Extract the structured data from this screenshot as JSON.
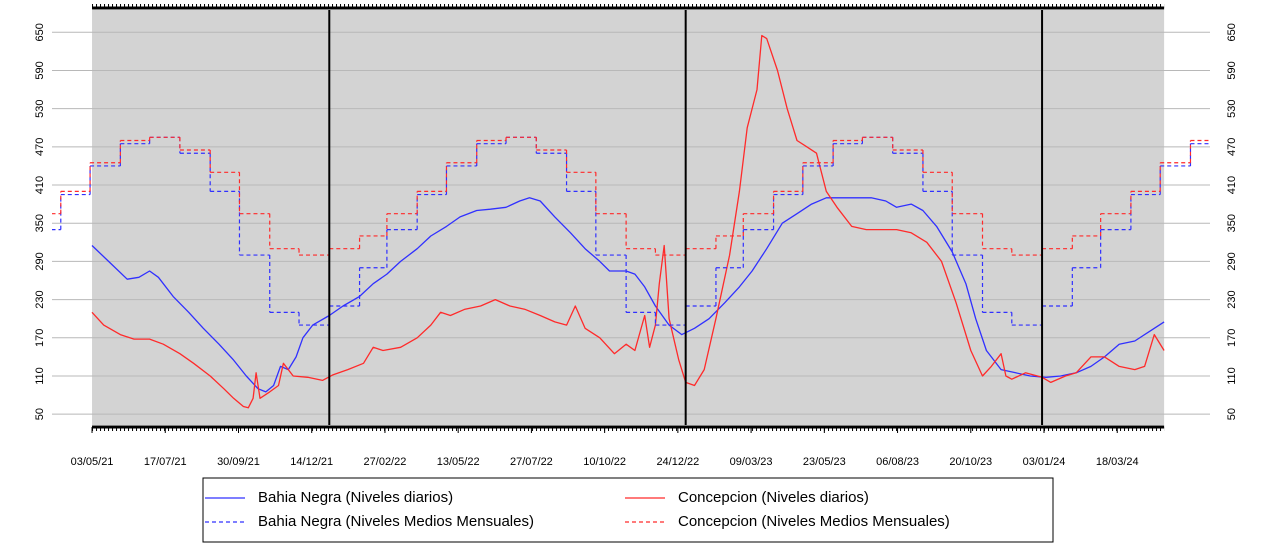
{
  "chart_data": {
    "type": "line",
    "xlim": [
      "2021-03-23",
      "2024-06-21"
    ],
    "ylim": [
      33,
      685
    ],
    "yticks": [
      50,
      110,
      170,
      230,
      290,
      350,
      410,
      470,
      530,
      590,
      650
    ],
    "xticks": [
      {
        "value": "2021-05-03",
        "label": "03/05/21"
      },
      {
        "value": "2021-07-17",
        "label": "17/07/21"
      },
      {
        "value": "2021-09-30",
        "label": "30/09/21"
      },
      {
        "value": "2021-12-14",
        "label": "14/12/21"
      },
      {
        "value": "2022-02-27",
        "label": "27/02/22"
      },
      {
        "value": "2022-05-13",
        "label": "13/05/22"
      },
      {
        "value": "2022-07-27",
        "label": "27/07/22"
      },
      {
        "value": "2022-10-10",
        "label": "10/10/22"
      },
      {
        "value": "2022-12-24",
        "label": "24/12/22"
      },
      {
        "value": "2023-03-09",
        "label": "09/03/23"
      },
      {
        "value": "2023-05-23",
        "label": "23/05/23"
      },
      {
        "value": "2023-08-06",
        "label": "06/08/23"
      },
      {
        "value": "2023-10-20",
        "label": "20/10/23"
      },
      {
        "value": "2024-01-03",
        "label": "03/01/24"
      },
      {
        "value": "2024-03-18",
        "label": "18/03/24"
      }
    ],
    "vlines": [
      "2022-01-01",
      "2023-01-01",
      "2024-01-01"
    ],
    "grid": true,
    "background": "#d3d3d3",
    "legend": "bottom",
    "series": [
      {
        "name": "Bahia Negra (Niveles diarios)",
        "color": "#3030ff",
        "dashed": false,
        "x": [
          "2021-05-03",
          "2021-05-20",
          "2021-06-08",
          "2021-06-20",
          "2021-07-01",
          "2021-07-10",
          "2021-07-25",
          "2021-08-10",
          "2021-08-25",
          "2021-09-10",
          "2021-09-25",
          "2021-10-08",
          "2021-10-20",
          "2021-10-28",
          "2021-11-05",
          "2021-11-12",
          "2021-11-20",
          "2021-11-28",
          "2021-12-05",
          "2021-12-15",
          "2022-01-01",
          "2022-01-15",
          "2022-02-01",
          "2022-02-15",
          "2022-03-01",
          "2022-03-15",
          "2022-04-01",
          "2022-04-15",
          "2022-05-01",
          "2022-05-15",
          "2022-06-01",
          "2022-06-15",
          "2022-07-01",
          "2022-07-15",
          "2022-07-25",
          "2022-08-05",
          "2022-08-20",
          "2022-09-05",
          "2022-09-20",
          "2022-10-05",
          "2022-10-15",
          "2022-11-01",
          "2022-11-10",
          "2022-11-20",
          "2022-12-01",
          "2022-12-15",
          "2022-12-28",
          "2023-01-10",
          "2023-01-25",
          "2023-02-10",
          "2023-02-25",
          "2023-03-10",
          "2023-03-25",
          "2023-04-10",
          "2023-04-25",
          "2023-05-10",
          "2023-05-25",
          "2023-06-10",
          "2023-06-25",
          "2023-07-10",
          "2023-07-25",
          "2023-08-05",
          "2023-08-20",
          "2023-09-01",
          "2023-09-15",
          "2023-10-01",
          "2023-10-15",
          "2023-10-25",
          "2023-11-05",
          "2023-11-20",
          "2023-12-05",
          "2023-12-20",
          "2024-01-05",
          "2024-01-20",
          "2024-02-05",
          "2024-02-20",
          "2024-03-05",
          "2024-03-20",
          "2024-04-05",
          "2024-04-20",
          "2024-05-05"
        ],
        "values": [
          315,
          290,
          262,
          265,
          275,
          265,
          235,
          210,
          185,
          160,
          135,
          110,
          90,
          85,
          95,
          125,
          120,
          140,
          170,
          190,
          205,
          220,
          235,
          255,
          270,
          290,
          310,
          330,
          345,
          360,
          370,
          372,
          375,
          385,
          390,
          385,
          360,
          335,
          310,
          290,
          275,
          275,
          270,
          250,
          220,
          190,
          175,
          185,
          200,
          225,
          250,
          275,
          310,
          350,
          365,
          380,
          390,
          390,
          390,
          390,
          385,
          375,
          380,
          370,
          345,
          305,
          255,
          200,
          150,
          120,
          115,
          110,
          108,
          110,
          115,
          125,
          140,
          160,
          165,
          180,
          195
        ]
      },
      {
        "name": "Concepcion (Niveles diarios)",
        "color": "#ff2a2a",
        "dashed": false,
        "x": [
          "2021-05-03",
          "2021-05-15",
          "2021-06-01",
          "2021-06-15",
          "2021-07-01",
          "2021-07-15",
          "2021-08-01",
          "2021-08-15",
          "2021-09-01",
          "2021-09-15",
          "2021-09-25",
          "2021-10-05",
          "2021-10-10",
          "2021-10-15",
          "2021-10-18",
          "2021-10-22",
          "2021-11-01",
          "2021-11-10",
          "2021-11-15",
          "2021-11-25",
          "2021-12-10",
          "2021-12-25",
          "2022-01-05",
          "2022-01-20",
          "2022-02-05",
          "2022-02-15",
          "2022-02-25",
          "2022-03-15",
          "2022-04-01",
          "2022-04-15",
          "2022-04-25",
          "2022-05-05",
          "2022-05-20",
          "2022-06-05",
          "2022-06-20",
          "2022-07-05",
          "2022-07-20",
          "2022-08-05",
          "2022-08-20",
          "2022-09-01",
          "2022-09-10",
          "2022-09-20",
          "2022-10-05",
          "2022-10-20",
          "2022-11-01",
          "2022-11-10",
          "2022-11-20",
          "2022-11-25",
          "2022-12-01",
          "2022-12-05",
          "2022-12-10",
          "2022-12-15",
          "2022-12-25",
          "2023-01-01",
          "2023-01-10",
          "2023-01-20",
          "2023-02-01",
          "2023-02-15",
          "2023-02-25",
          "2023-03-05",
          "2023-03-15",
          "2023-03-20",
          "2023-03-25",
          "2023-04-05",
          "2023-04-15",
          "2023-04-25",
          "2023-05-05",
          "2023-05-15",
          "2023-05-25",
          "2023-06-05",
          "2023-06-20",
          "2023-07-05",
          "2023-07-20",
          "2023-08-05",
          "2023-08-20",
          "2023-09-05",
          "2023-09-20",
          "2023-10-05",
          "2023-10-20",
          "2023-11-01",
          "2023-11-10",
          "2023-11-20",
          "2023-11-25",
          "2023-12-01",
          "2023-12-15",
          "2024-01-01",
          "2024-01-10",
          "2024-01-25",
          "2024-02-05",
          "2024-02-20",
          "2024-03-05",
          "2024-03-20",
          "2024-04-05",
          "2024-04-15",
          "2024-04-25",
          "2024-05-05"
        ],
        "values": [
          210,
          190,
          175,
          168,
          168,
          160,
          145,
          130,
          110,
          90,
          75,
          62,
          60,
          75,
          115,
          75,
          85,
          95,
          130,
          110,
          108,
          103,
          112,
          120,
          130,
          155,
          150,
          155,
          170,
          190,
          210,
          205,
          215,
          220,
          230,
          220,
          215,
          205,
          195,
          190,
          220,
          185,
          170,
          145,
          160,
          150,
          205,
          155,
          190,
          255,
          315,
          200,
          135,
          100,
          95,
          120,
          200,
          300,
          400,
          500,
          560,
          645,
          640,
          590,
          530,
          480,
          470,
          460,
          400,
          375,
          345,
          340,
          340,
          340,
          335,
          320,
          290,
          225,
          150,
          110,
          125,
          145,
          110,
          105,
          115,
          108,
          100,
          110,
          115,
          140,
          140,
          125,
          120,
          125,
          175,
          150
        ]
      },
      {
        "name": "Bahia Negra (Niveles Medios Mensuales)",
        "color": "#3030ff",
        "dashed": true,
        "x": [
          "2021-03-01",
          "2021-04-01",
          "2021-05-01",
          "2021-06-01",
          "2021-07-01",
          "2021-08-01",
          "2021-09-01",
          "2021-10-01",
          "2021-11-01",
          "2021-12-01",
          "2022-01-01",
          "2022-02-01",
          "2022-03-01",
          "2022-04-01",
          "2022-05-01",
          "2022-06-01",
          "2022-07-01",
          "2022-08-01",
          "2022-09-01",
          "2022-10-01",
          "2022-11-01",
          "2022-12-01",
          "2023-01-01",
          "2023-02-01",
          "2023-03-01",
          "2023-04-01",
          "2023-05-01",
          "2023-06-01",
          "2023-07-01",
          "2023-08-01",
          "2023-09-01",
          "2023-10-01",
          "2023-11-01",
          "2023-12-01",
          "2024-01-01",
          "2024-02-01",
          "2024-03-01",
          "2024-04-01",
          "2024-05-01",
          "2024-06-01"
        ],
        "values": [
          340,
          395,
          440,
          475,
          485,
          460,
          400,
          300,
          210,
          190,
          220,
          280,
          340,
          395,
          440,
          475,
          485,
          460,
          400,
          300,
          210,
          190,
          220,
          280,
          340,
          395,
          440,
          475,
          485,
          460,
          400,
          300,
          210,
          190,
          220,
          280,
          340,
          395,
          440,
          475
        ]
      },
      {
        "name": "Concepcion (Niveles Medios Mensuales)",
        "color": "#ff2a2a",
        "dashed": true,
        "x": [
          "2021-03-01",
          "2021-04-01",
          "2021-05-01",
          "2021-06-01",
          "2021-07-01",
          "2021-08-01",
          "2021-09-01",
          "2021-10-01",
          "2021-11-01",
          "2021-12-01",
          "2022-01-01",
          "2022-02-01",
          "2022-03-01",
          "2022-04-01",
          "2022-05-01",
          "2022-06-01",
          "2022-07-01",
          "2022-08-01",
          "2022-09-01",
          "2022-10-01",
          "2022-11-01",
          "2022-12-01",
          "2023-01-01",
          "2023-02-01",
          "2023-03-01",
          "2023-04-01",
          "2023-05-01",
          "2023-06-01",
          "2023-07-01",
          "2023-08-01",
          "2023-09-01",
          "2023-10-01",
          "2023-11-01",
          "2023-12-01",
          "2024-01-01",
          "2024-02-01",
          "2024-03-01",
          "2024-04-01",
          "2024-05-01",
          "2024-06-01"
        ],
        "values": [
          365,
          400,
          445,
          480,
          485,
          465,
          430,
          365,
          310,
          300,
          310,
          330,
          365,
          400,
          445,
          480,
          485,
          465,
          430,
          365,
          310,
          300,
          310,
          330,
          365,
          400,
          445,
          480,
          485,
          465,
          430,
          365,
          310,
          300,
          310,
          330,
          365,
          400,
          445,
          480
        ]
      }
    ]
  }
}
